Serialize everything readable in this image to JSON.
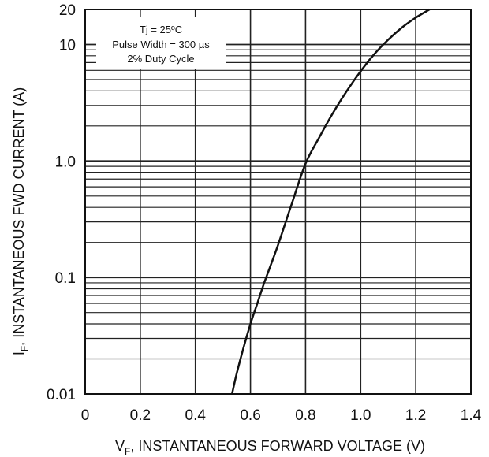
{
  "chart_data": {
    "type": "line",
    "title": "",
    "xlabel": "V",
    "xlabel_sub": "F",
    "xlabel_rest": ", INSTANTANEOUS FORWARD VOLTAGE (V)",
    "ylabel": "I",
    "ylabel_sub": "F",
    "ylabel_rest": ", INSTANTANEOUS FWD CURRENT (A)",
    "xlim": [
      0,
      1.4
    ],
    "ylim": [
      0.01,
      20
    ],
    "y_scale": "log",
    "grid": true,
    "x_ticks": [
      {
        "value": 0,
        "label": "0"
      },
      {
        "value": 0.2,
        "label": "0.2"
      },
      {
        "value": 0.4,
        "label": "0.4"
      },
      {
        "value": 0.6,
        "label": "0.6"
      },
      {
        "value": 0.8,
        "label": "0.8"
      },
      {
        "value": 1.0,
        "label": "1.0"
      },
      {
        "value": 1.2,
        "label": "1.2"
      },
      {
        "value": 1.4,
        "label": "1.4"
      }
    ],
    "y_ticks": [
      {
        "value": 0.01,
        "label": "0.01"
      },
      {
        "value": 0.1,
        "label": "0.1"
      },
      {
        "value": 1.0,
        "label": "1.0"
      },
      {
        "value": 10,
        "label": "10"
      },
      {
        "value": 20,
        "label": "20"
      }
    ],
    "annotation": [
      "Tj = 25ºC",
      "Pulse Width = 300 µs",
      "2% Duty Cycle"
    ],
    "series": [
      {
        "x": [
          0.533,
          0.55,
          0.575,
          0.6,
          0.625,
          0.65,
          0.7,
          0.75,
          0.8,
          0.85,
          0.9,
          0.95,
          1.0,
          1.05,
          1.1,
          1.15,
          1.2,
          1.25
        ],
        "y": [
          0.01,
          0.015,
          0.025,
          0.04,
          0.06,
          0.09,
          0.19,
          0.43,
          0.95,
          1.6,
          2.6,
          4.0,
          5.9,
          8.3,
          11.0,
          14.0,
          17.0,
          20.0
        ]
      }
    ]
  }
}
